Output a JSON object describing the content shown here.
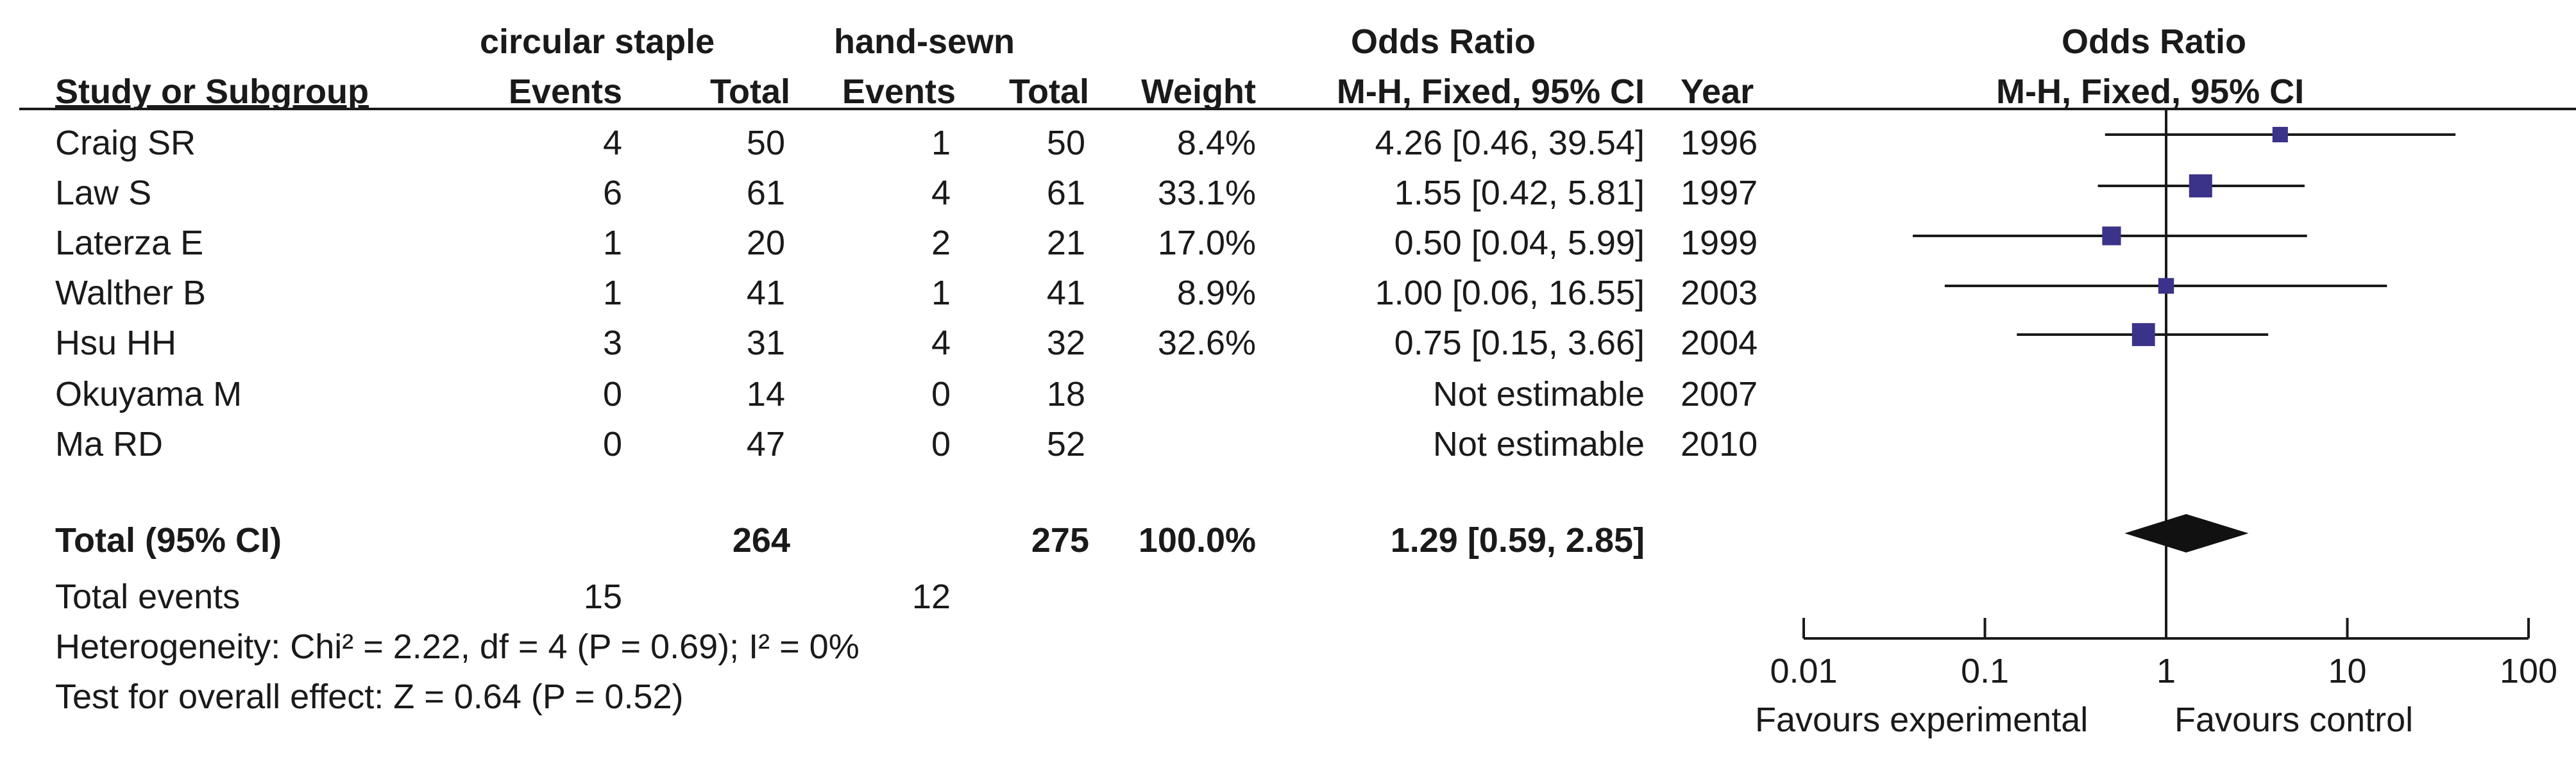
{
  "header": {
    "group1": "circular staple",
    "group2": "hand-sewn",
    "or_title": "Odds Ratio",
    "plot_title": "Odds Ratio",
    "col_study": "Study or Subgroup",
    "col_events1": "Events",
    "col_total1": "Total",
    "col_events2": "Events",
    "col_total2": "Total",
    "col_weight": "Weight",
    "col_or": "M-H, Fixed, 95% CI",
    "col_year": "Year",
    "plot_subtitle": "M-H, Fixed, 95% CI"
  },
  "studies": [
    {
      "name": "Craig SR",
      "e1": "4",
      "t1": "50",
      "e2": "1",
      "t2": "50",
      "weight": "8.4%",
      "ci": "4.26 [0.46, 39.54]",
      "year": "1996"
    },
    {
      "name": "Law S",
      "e1": "6",
      "t1": "61",
      "e2": "4",
      "t2": "61",
      "weight": "33.1%",
      "ci": "1.55 [0.42, 5.81]",
      "year": "1997"
    },
    {
      "name": "Laterza E",
      "e1": "1",
      "t1": "20",
      "e2": "2",
      "t2": "21",
      "weight": "17.0%",
      "ci": "0.50 [0.04, 5.99]",
      "year": "1999"
    },
    {
      "name": "Walther B",
      "e1": "1",
      "t1": "41",
      "e2": "1",
      "t2": "41",
      "weight": "8.9%",
      "ci": "1.00 [0.06, 16.55]",
      "year": "2003"
    },
    {
      "name": "Hsu HH",
      "e1": "3",
      "t1": "31",
      "e2": "4",
      "t2": "32",
      "weight": "32.6%",
      "ci": "0.75 [0.15, 3.66]",
      "year": "2004"
    },
    {
      "name": "Okuyama M",
      "e1": "0",
      "t1": "14",
      "e2": "0",
      "t2": "18",
      "weight": "",
      "ci": "Not estimable",
      "year": "2007"
    },
    {
      "name": "Ma RD",
      "e1": "0",
      "t1": "47",
      "e2": "0",
      "t2": "52",
      "weight": "",
      "ci": "Not estimable",
      "year": "2010"
    }
  ],
  "total": {
    "label": "Total (95% CI)",
    "t1": "264",
    "t2": "275",
    "weight": "100.0%",
    "ci": "1.29 [0.59, 2.85]"
  },
  "events": {
    "label": "Total events",
    "e1": "15",
    "e2": "12"
  },
  "heterogeneity": "Heterogeneity: Chi² = 2.22, df = 4 (P = 0.69); I² = 0%",
  "overall_effect": "Test for overall effect: Z = 0.64 (P = 0.52)",
  "axis": {
    "ticks": [
      "0.01",
      "0.1",
      "1",
      "10",
      "100"
    ],
    "favours_left": "Favours experimental",
    "favours_right": "Favours control"
  },
  "chart_data": {
    "type": "forest",
    "scale": "log",
    "xlim": [
      0.01,
      100
    ],
    "ticks": [
      0.01,
      0.1,
      1,
      10,
      100
    ],
    "reference_line": 1,
    "studies": [
      {
        "name": "Craig SR",
        "or": 4.26,
        "lo": 0.46,
        "hi": 39.54,
        "weight": 8.4
      },
      {
        "name": "Law S",
        "or": 1.55,
        "lo": 0.42,
        "hi": 5.81,
        "weight": 33.1
      },
      {
        "name": "Laterza E",
        "or": 0.5,
        "lo": 0.04,
        "hi": 5.99,
        "weight": 17.0
      },
      {
        "name": "Walther B",
        "or": 1.0,
        "lo": 0.06,
        "hi": 16.55,
        "weight": 8.9
      },
      {
        "name": "Hsu HH",
        "or": 0.75,
        "lo": 0.15,
        "hi": 3.66,
        "weight": 32.6
      }
    ],
    "pooled": {
      "or": 1.29,
      "lo": 0.59,
      "hi": 2.85
    },
    "marker_color": "#3b3289",
    "diamond_color": "#111111"
  }
}
